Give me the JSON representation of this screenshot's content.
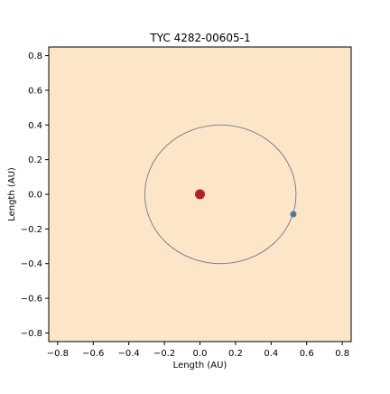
{
  "chart_data": {
    "type": "scatter",
    "title": "TYC 4282-00605-1",
    "xlabel": "Length (AU)",
    "ylabel": "Length (AU)",
    "xlim": [
      -0.85,
      0.85
    ],
    "ylim": [
      -0.85,
      0.85
    ],
    "xticks": [
      -0.8,
      -0.6,
      -0.4,
      -0.2,
      0.0,
      0.2,
      0.4,
      0.6,
      0.8
    ],
    "yticks": [
      -0.8,
      -0.6,
      -0.4,
      -0.2,
      0.0,
      0.2,
      0.4,
      0.6,
      0.8
    ],
    "xtick_labels": [
      "−0.8",
      "−0.6",
      "−0.4",
      "−0.2",
      "0.0",
      "0.2",
      "0.4",
      "0.6",
      "0.8"
    ],
    "ytick_labels": [
      "−0.8",
      "−0.6",
      "−0.4",
      "−0.2",
      "0.0",
      "0.2",
      "0.4",
      "0.6",
      "0.8"
    ],
    "grid": false,
    "background_color": "#fde5c8",
    "star": {
      "x": 0.0,
      "y": 0.0,
      "color": "#b22222"
    },
    "orbit": {
      "center_x": 0.115,
      "center_y": 0.0,
      "semi_major": 0.425,
      "semi_minor": 0.4,
      "color": "#6e7b8b"
    },
    "planet": {
      "x": 0.525,
      "y": -0.115,
      "color": "#4a7aa0"
    }
  }
}
